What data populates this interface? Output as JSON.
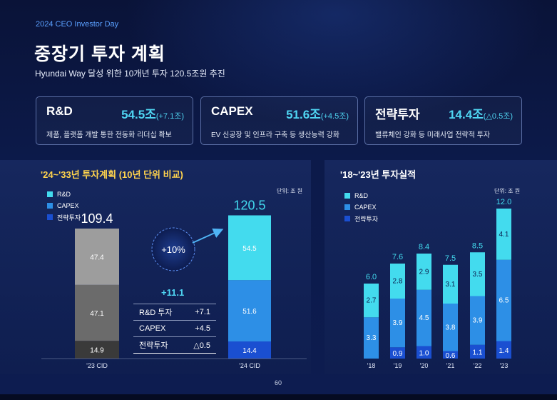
{
  "header": {
    "event": "2024 CEO Investor Day",
    "title": "중장기 투자 계획",
    "subtitle": "Hyundai Way 달성 위한 10개년 투자 120.5조원 추진"
  },
  "cards": [
    {
      "name": "R&D",
      "value": "54.5조",
      "delta": "(+7.1조)",
      "desc": "제품, 플랫폼 개발 통한 전동화 리더십 확보"
    },
    {
      "name": "CAPEX",
      "value": "51.6조",
      "delta": "(+4.5조)",
      "desc": "EV 신공장 및 인프라 구축 등 생산능력 강화"
    },
    {
      "name": "전략투자",
      "value": "14.4조",
      "delta": "(△0.5조)",
      "desc": "밸류체인 강화 등 미래사업 전략적 투자"
    }
  ],
  "colors": {
    "rnd": "#43dbee",
    "capex": "#2d8fe6",
    "strategic": "#1a4fd1"
  },
  "page_number": "60",
  "chart_data": [
    {
      "type": "bar",
      "title": "'24~'33년 투자계획 (10년 단위 비교)",
      "unit": "단위: 조 원",
      "legend": [
        "R&D",
        "CAPEX",
        "전략투자"
      ],
      "categories": [
        "'23 CID",
        "'24 CID"
      ],
      "series": [
        {
          "name": "전략투자",
          "values": [
            14.9,
            14.4
          ]
        },
        {
          "name": "CAPEX",
          "values": [
            47.1,
            51.6
          ]
        },
        {
          "name": "R&D",
          "values": [
            47.4,
            54.5
          ]
        }
      ],
      "totals": [
        "109.4",
        "120.5"
      ],
      "labels": {
        "전략투자": [
          "14.9",
          "14.4"
        ],
        "CAPEX": [
          "47.1",
          "51.6"
        ],
        "R&D": [
          "47.4",
          "54.5"
        ]
      },
      "growth_label": "+10%",
      "increase_total": "+11.1",
      "increase_rows": [
        {
          "label": "R&D 투자",
          "value": "+7.1"
        },
        {
          "label": "CAPEX",
          "value": "+4.5"
        },
        {
          "label": "전략투자",
          "value": "△0.5"
        }
      ]
    },
    {
      "type": "bar",
      "title": "'18~'23년 투자실적",
      "unit": "단위: 조 원",
      "legend": [
        "R&D",
        "CAPEX",
        "전략투자"
      ],
      "categories": [
        "'18",
        "'19",
        "'20",
        "'21",
        "'22",
        "'23"
      ],
      "series": [
        {
          "name": "전략투자",
          "values": [
            0,
            0.9,
            1.0,
            0.6,
            1.1,
            1.4
          ]
        },
        {
          "name": "CAPEX",
          "values": [
            3.3,
            3.9,
            4.5,
            3.8,
            3.9,
            6.5
          ]
        },
        {
          "name": "R&D",
          "values": [
            2.7,
            2.8,
            2.9,
            3.1,
            3.5,
            4.1
          ]
        }
      ],
      "totals": [
        "6.0",
        "7.6",
        "8.4",
        "7.5",
        "8.5",
        "12.0"
      ],
      "labels": {
        "전략투자": [
          "",
          "0.9",
          "1.0",
          "0.6",
          "1.1",
          "1.4"
        ],
        "CAPEX": [
          "3.3",
          "3.9",
          "4.5",
          "3.8",
          "3.9",
          "6.5"
        ],
        "R&D": [
          "2.7",
          "2.8",
          "2.9",
          "3.1",
          "3.5",
          "4.1"
        ]
      }
    }
  ]
}
